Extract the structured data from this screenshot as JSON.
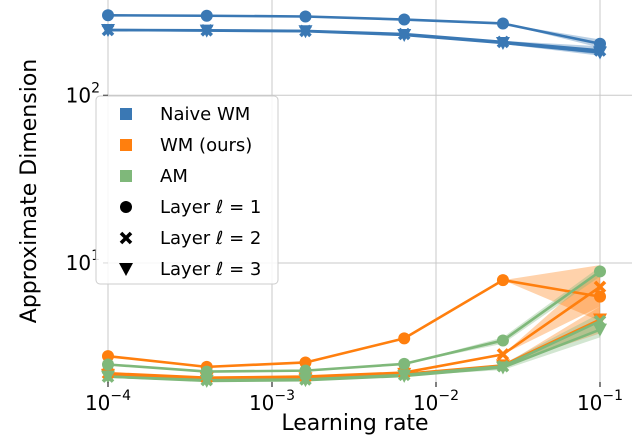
{
  "chart_data": {
    "type": "line",
    "xlabel": "Learning rate",
    "ylabel": "Approximate Dimension",
    "x_scale": "log",
    "y_scale": "log",
    "x": [
      0.0001,
      0.0004,
      0.0016,
      0.0064,
      0.0256,
      0.1
    ],
    "xlim": [
      0.0001,
      0.1
    ],
    "ylim": [
      1.95,
      370
    ],
    "x_ticks": [
      {
        "value": 0.0001,
        "base": "10",
        "exp": "−4"
      },
      {
        "value": 0.001,
        "base": "10",
        "exp": "−3"
      },
      {
        "value": 0.01,
        "base": "10",
        "exp": "−2"
      },
      {
        "value": 0.1,
        "base": "10",
        "exp": "−1"
      }
    ],
    "y_ticks": [
      {
        "value": 10,
        "base": "10",
        "exp": "1"
      },
      {
        "value": 100,
        "base": "10",
        "exp": "2"
      }
    ],
    "grid": true,
    "legend_position": "center-left",
    "legend": [
      {
        "label": "Naive WM",
        "kind": "color",
        "color": "#3a78b4"
      },
      {
        "label": "WM (ours)",
        "kind": "color",
        "color": "#ff7f0e"
      },
      {
        "label": "AM",
        "kind": "color",
        "color": "#7fb87a"
      },
      {
        "label": "Layer ℓ = 1",
        "kind": "marker",
        "marker": "circle"
      },
      {
        "label": "Layer ℓ = 2",
        "kind": "marker",
        "marker": "x"
      },
      {
        "label": "Layer ℓ = 3",
        "kind": "marker",
        "marker": "triangle"
      }
    ],
    "series": [
      {
        "name": "Naive WM",
        "layer": 1,
        "color": "#3a78b4",
        "marker": "circle",
        "values": [
          300,
          298,
          295,
          283,
          268,
          203
        ],
        "band_low": [
          300,
          298,
          295,
          283,
          268,
          192
        ],
        "band_high": [
          300,
          298,
          295,
          283,
          268,
          215
        ]
      },
      {
        "name": "Naive WM",
        "layer": 2,
        "color": "#3a78b4",
        "marker": "x",
        "values": [
          245,
          244,
          242,
          232,
          208,
          185
        ],
        "band_low": [
          245,
          244,
          242,
          232,
          205,
          175
        ],
        "band_high": [
          245,
          244,
          242,
          232,
          211,
          196
        ]
      },
      {
        "name": "Naive WM",
        "layer": 3,
        "color": "#3a78b4",
        "marker": "triangle",
        "values": [
          245,
          243,
          241,
          229,
          205,
          180
        ],
        "band_low": [
          245,
          243,
          241,
          229,
          202,
          172
        ],
        "band_high": [
          245,
          243,
          241,
          229,
          208,
          188
        ]
      },
      {
        "name": "WM (ours)",
        "layer": 1,
        "color": "#ff7f0e",
        "marker": "circle",
        "values": [
          2.78,
          2.4,
          2.55,
          3.55,
          7.9,
          6.3
        ],
        "band_low": [
          2.78,
          2.4,
          2.55,
          3.55,
          7.9,
          4.5
        ],
        "band_high": [
          2.78,
          2.4,
          2.55,
          3.55,
          7.9,
          9.7
        ]
      },
      {
        "name": "WM (ours)",
        "layer": 2,
        "color": "#ff7f0e",
        "marker": "x",
        "values": [
          2.2,
          2.07,
          2.1,
          2.22,
          2.85,
          7.2
        ],
        "band_low": [
          2.2,
          2.07,
          2.1,
          2.22,
          2.85,
          5.5
        ],
        "band_high": [
          2.2,
          2.07,
          2.1,
          2.22,
          2.85,
          9.2
        ]
      },
      {
        "name": "WM (ours)",
        "layer": 3,
        "color": "#ff7f0e",
        "marker": "triangle",
        "values": [
          2.15,
          2.05,
          2.05,
          2.18,
          2.45,
          4.6
        ],
        "band_low": [
          2.15,
          2.05,
          2.05,
          2.18,
          2.45,
          3.8
        ],
        "band_high": [
          2.15,
          2.05,
          2.05,
          2.18,
          2.45,
          5.5
        ]
      },
      {
        "name": "AM",
        "layer": 1,
        "color": "#7fb87a",
        "marker": "circle",
        "values": [
          2.48,
          2.25,
          2.28,
          2.5,
          3.45,
          8.9
        ],
        "band_low": [
          2.48,
          2.25,
          2.28,
          2.5,
          3.3,
          8.3
        ],
        "band_high": [
          2.48,
          2.25,
          2.28,
          2.5,
          3.6,
          9.5
        ]
      },
      {
        "name": "AM",
        "layer": 2,
        "color": "#7fb87a",
        "marker": "x",
        "values": [
          2.1,
          2.0,
          2.02,
          2.15,
          2.42,
          4.5
        ],
        "band_low": [
          2.1,
          2.0,
          2.02,
          2.15,
          2.35,
          4.0
        ],
        "band_high": [
          2.1,
          2.0,
          2.02,
          2.15,
          2.5,
          5.0
        ]
      },
      {
        "name": "AM",
        "layer": 3,
        "color": "#7fb87a",
        "marker": "triangle",
        "values": [
          2.1,
          1.98,
          2.0,
          2.12,
          2.38,
          4.0
        ],
        "band_low": [
          2.1,
          1.98,
          2.0,
          2.12,
          2.3,
          3.6
        ],
        "band_high": [
          2.1,
          1.98,
          2.0,
          2.12,
          2.45,
          4.4
        ]
      }
    ]
  }
}
